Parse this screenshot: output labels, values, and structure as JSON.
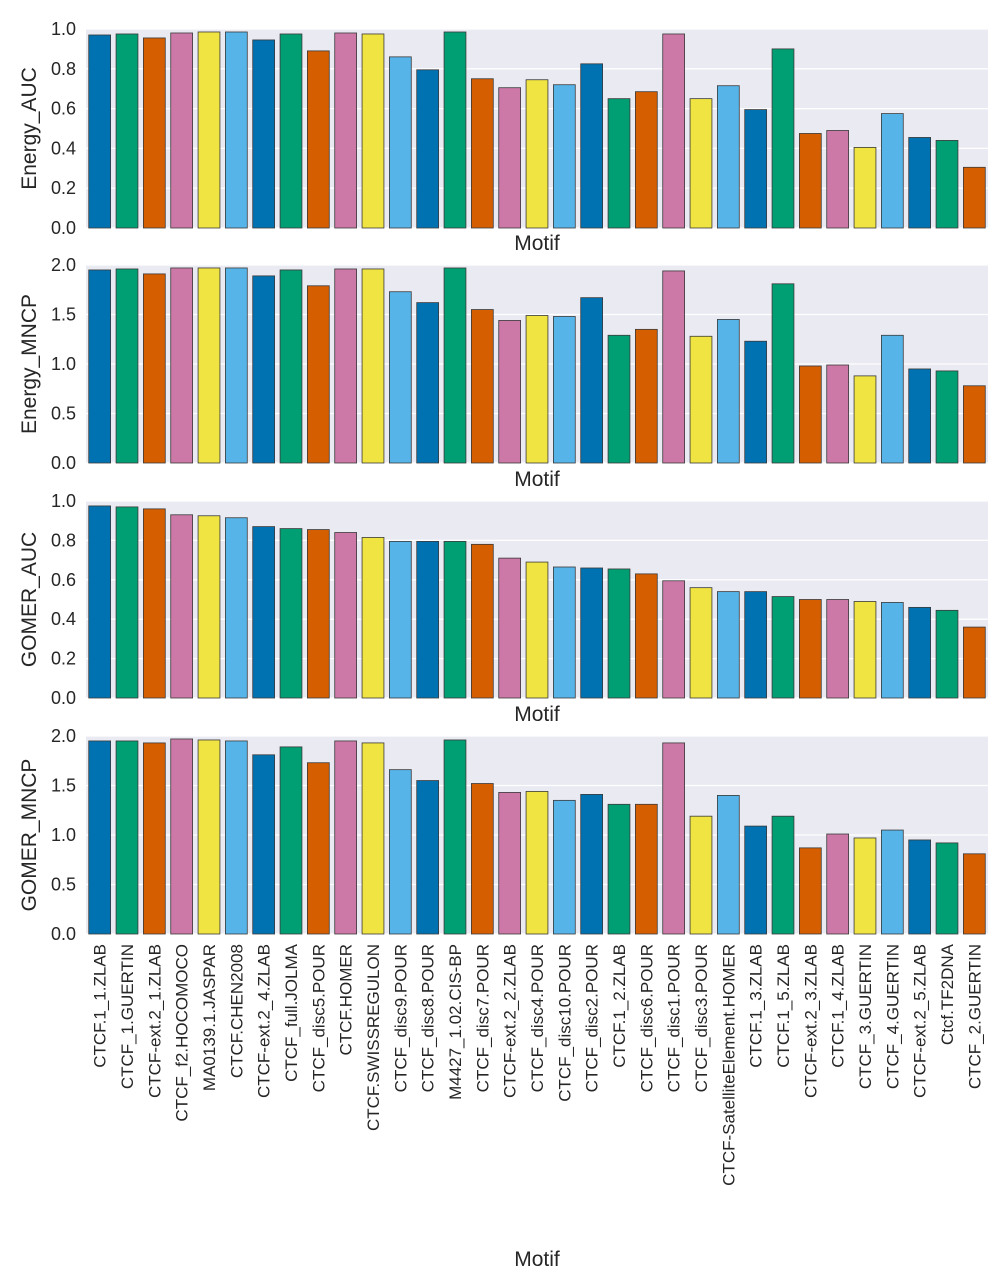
{
  "chart_data": [
    {
      "type": "bar",
      "ylabel": "Energy_AUC",
      "xlabel": "Motif",
      "ylim": [
        0,
        1.0
      ],
      "yticks": [
        "0.0",
        "0.2",
        "0.4",
        "0.6",
        "0.8",
        "1.0"
      ],
      "values": [
        0.97,
        0.975,
        0.955,
        0.98,
        0.985,
        0.985,
        0.945,
        0.975,
        0.89,
        0.98,
        0.975,
        0.86,
        0.795,
        0.985,
        0.75,
        0.705,
        0.745,
        0.72,
        0.825,
        0.65,
        0.685,
        0.975,
        0.65,
        0.715,
        0.595,
        0.9,
        0.475,
        0.49,
        0.405,
        0.575,
        0.455,
        0.44,
        0.305
      ],
      "grid": true,
      "legend": "none"
    },
    {
      "type": "bar",
      "ylabel": "Energy_MNCP",
      "xlabel": "Motif",
      "ylim": [
        0,
        2.0
      ],
      "yticks": [
        "0.0",
        "0.5",
        "1.0",
        "1.5",
        "2.0"
      ],
      "values": [
        1.95,
        1.96,
        1.91,
        1.97,
        1.97,
        1.97,
        1.89,
        1.95,
        1.79,
        1.96,
        1.96,
        1.73,
        1.62,
        1.97,
        1.55,
        1.44,
        1.49,
        1.48,
        1.67,
        1.29,
        1.35,
        1.94,
        1.28,
        1.45,
        1.23,
        1.81,
        0.98,
        0.99,
        0.88,
        1.29,
        0.95,
        0.93,
        0.78
      ],
      "grid": true,
      "legend": "none"
    },
    {
      "type": "bar",
      "ylabel": "GOMER_AUC",
      "xlabel": "Motif",
      "ylim": [
        0,
        1.0
      ],
      "yticks": [
        "0.0",
        "0.2",
        "0.4",
        "0.6",
        "0.8",
        "1.0"
      ],
      "values": [
        0.975,
        0.97,
        0.96,
        0.93,
        0.925,
        0.915,
        0.87,
        0.86,
        0.855,
        0.84,
        0.815,
        0.795,
        0.795,
        0.795,
        0.78,
        0.71,
        0.69,
        0.665,
        0.66,
        0.655,
        0.63,
        0.595,
        0.56,
        0.54,
        0.54,
        0.515,
        0.5,
        0.5,
        0.49,
        0.485,
        0.46,
        0.445,
        0.36
      ],
      "grid": true,
      "legend": "none"
    },
    {
      "type": "bar",
      "ylabel": "GOMER_MNCP",
      "xlabel": "Motif",
      "ylim": [
        0,
        2.0
      ],
      "yticks": [
        "0.0",
        "0.5",
        "1.0",
        "1.5",
        "2.0"
      ],
      "values": [
        1.95,
        1.95,
        1.93,
        1.97,
        1.96,
        1.95,
        1.81,
        1.89,
        1.73,
        1.95,
        1.93,
        1.66,
        1.55,
        1.96,
        1.52,
        1.43,
        1.44,
        1.35,
        1.41,
        1.31,
        1.31,
        1.93,
        1.19,
        1.4,
        1.09,
        1.19,
        0.87,
        1.01,
        0.97,
        1.05,
        0.95,
        0.92,
        0.81
      ],
      "grid": true,
      "legend": "none"
    }
  ],
  "categories": [
    "CTCF.1_1.ZLAB",
    "CTCF_1.GUERTIN",
    "CTCF-ext.2_1.ZLAB",
    "CTCF_f2.HOCOMOCO",
    "MA0139.1.JASPAR",
    "CTCF.CHEN2008",
    "CTCF-ext.2_4.ZLAB",
    "CTCF_full.JOLMA",
    "CTCF_disc5.POUR",
    "CTCF.HOMER",
    "CTCF.SWISSREGULON",
    "CTCF_disc9.POUR",
    "CTCF_disc8.POUR",
    "M4427_1.02.CIS-BP",
    "CTCF_disc7.POUR",
    "CTCF-ext.2_2.ZLAB",
    "CTCF_disc4.POUR",
    "CTCF_disc10.POUR",
    "CTCF_disc2.POUR",
    "CTCF.1_2.ZLAB",
    "CTCF_disc6.POUR",
    "CTCF_disc1.POUR",
    "CTCF_disc3.POUR",
    "CTCF-SatelliteElement.HOMER",
    "CTCF.1_3.ZLAB",
    "CTCF.1_5.ZLAB",
    "CTCF-ext.2_3.ZLAB",
    "CTCF.1_4.ZLAB",
    "CTCF_3.GUERTIN",
    "CTCF_4.GUERTIN",
    "CTCF-ext.2_5.ZLAB",
    "Ctcf.TF2DNA",
    "CTCF_2.GUERTIN"
  ],
  "palette": [
    "#0072b2",
    "#009e73",
    "#d55e00",
    "#cc79a7",
    "#f0e442",
    "#56b4e9"
  ],
  "axes_bg": "#eaeaf2",
  "grid_color": "#ffffff",
  "bar_edge": "#3a3a3a"
}
